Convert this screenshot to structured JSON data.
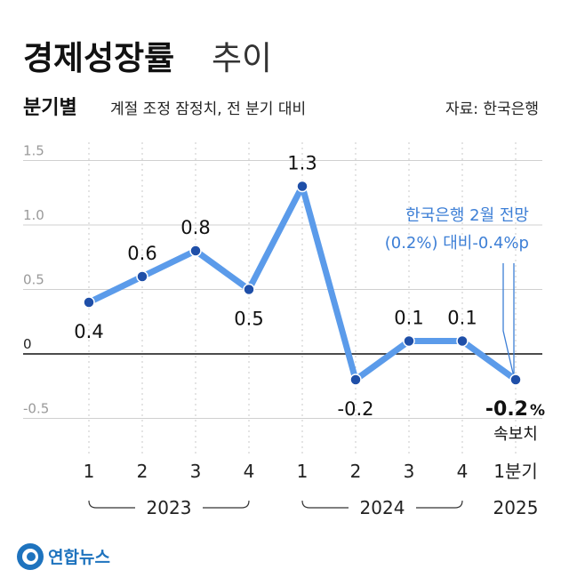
{
  "title_bold": "경제성장률",
  "title_light": "추이",
  "subtitle_bold": "분기별",
  "subtitle": "계절 조정 잠정치, 전 분기 대비",
  "source": "자료: 한국은행",
  "brand": "연합뉴스",
  "colors": {
    "line": "#5b9bea",
    "marker": "#1f4fa8",
    "grid": "#d0d0d0",
    "annotation": "#3d7fd6",
    "brand": "#1e73be"
  },
  "chart_data": {
    "type": "line",
    "title": "경제성장률 추이",
    "subtitle": "분기별 계절 조정 잠정치, 전 분기 대비",
    "unit": "%",
    "ylim": [
      -0.5,
      1.5
    ],
    "yticks": [
      "1.5",
      "1.0",
      "0.5",
      "0",
      "-0.5"
    ],
    "ytick_values": [
      1.5,
      1.0,
      0.5,
      0,
      -0.5
    ],
    "categories": [
      "1",
      "2",
      "3",
      "4",
      "1",
      "2",
      "3",
      "4",
      "1분기"
    ],
    "groups": [
      {
        "label": "2023",
        "from": 0,
        "to": 3
      },
      {
        "label": "2024",
        "from": 4,
        "to": 7
      },
      {
        "label": "2025",
        "from": 8,
        "to": 8
      }
    ],
    "series": [
      {
        "values": [
          0.4,
          0.6,
          0.8,
          0.5,
          1.3,
          -0.2,
          0.1,
          0.1,
          -0.2
        ],
        "value_labels": [
          "0.4",
          "0.6",
          "0.8",
          "0.5",
          "1.3",
          "-0.2",
          "0.1",
          "0.1",
          "-0.2"
        ]
      }
    ],
    "last_point": {
      "value_label": "-0.2",
      "unit_label": "%",
      "note": "속보치"
    },
    "annotation": {
      "line1": "한국은행 2월 전망",
      "line2": "(0.2%) 대비-0.4%p"
    }
  }
}
